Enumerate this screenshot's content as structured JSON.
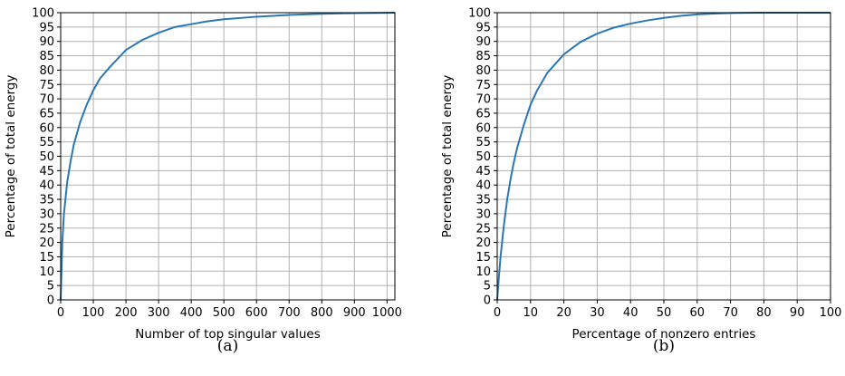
{
  "chart_data": [
    {
      "type": "line",
      "caption": "(a)",
      "xlabel": "Number of top singular values",
      "ylabel": "Percentage of total energy",
      "xlim": [
        0,
        1024
      ],
      "ylim": [
        0,
        100
      ],
      "xticks": [
        0,
        100,
        200,
        300,
        400,
        500,
        600,
        700,
        800,
        900,
        1000
      ],
      "yticks": [
        0,
        5,
        10,
        15,
        20,
        25,
        30,
        35,
        40,
        45,
        50,
        55,
        60,
        65,
        70,
        75,
        80,
        85,
        90,
        95,
        100
      ],
      "grid": true,
      "line_color": "#2a77b4",
      "series": [
        {
          "x": [
            0,
            5,
            10,
            20,
            30,
            40,
            50,
            60,
            70,
            80,
            100,
            120,
            150,
            200,
            250,
            300,
            350,
            400,
            450,
            500,
            600,
            700,
            800,
            900,
            1000,
            1024
          ],
          "y": [
            0,
            20,
            30,
            41,
            48,
            54,
            58,
            62,
            65,
            68,
            73,
            77,
            81,
            87,
            90.5,
            93,
            95,
            96,
            97,
            97.7,
            98.6,
            99.2,
            99.6,
            99.85,
            99.97,
            100
          ]
        }
      ]
    },
    {
      "type": "line",
      "caption": "(b)",
      "xlabel": "Percentage of nonzero entries",
      "ylabel": "Percentage of total energy",
      "xlim": [
        0,
        100
      ],
      "ylim": [
        0,
        100
      ],
      "xticks": [
        0,
        10,
        20,
        30,
        40,
        50,
        60,
        70,
        80,
        90,
        100
      ],
      "yticks": [
        0,
        5,
        10,
        15,
        20,
        25,
        30,
        35,
        40,
        45,
        50,
        55,
        60,
        65,
        70,
        75,
        80,
        85,
        90,
        95,
        100
      ],
      "grid": true,
      "line_color": "#2a77b4",
      "series": [
        {
          "x": [
            0,
            0.5,
            1,
            2,
            3,
            4,
            5,
            6,
            7,
            8,
            10,
            12,
            15,
            20,
            25,
            30,
            35,
            40,
            45,
            50,
            55,
            60,
            65,
            70,
            75,
            80,
            90,
            100
          ],
          "y": [
            0,
            8,
            15,
            26,
            35,
            42,
            48,
            53,
            57,
            61,
            68,
            73,
            79,
            85.5,
            89.8,
            92.7,
            94.8,
            96.2,
            97.3,
            98.2,
            98.9,
            99.4,
            99.7,
            99.9,
            99.97,
            100,
            100,
            100
          ]
        }
      ]
    }
  ]
}
